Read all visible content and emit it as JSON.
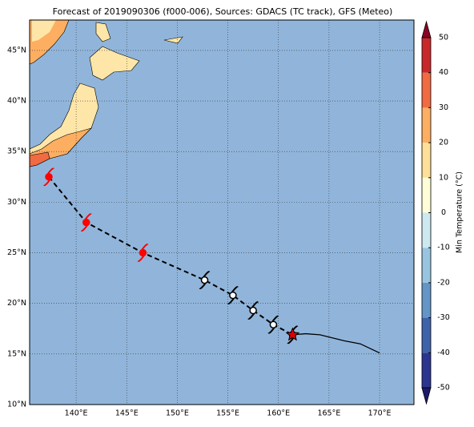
{
  "chart_data": {
    "type": "map",
    "title": "Forecast of 2019090306 (f000-006), Sources: GDACS (TC track), GFS (Meteo)",
    "xlim": [
      135.4,
      173.4
    ],
    "ylim": [
      10,
      48
    ],
    "xticks": [
      {
        "value": 140,
        "label": "140°E"
      },
      {
        "value": 145,
        "label": "145°E"
      },
      {
        "value": 150,
        "label": "150°E"
      },
      {
        "value": 155,
        "label": "155°E"
      },
      {
        "value": 160,
        "label": "160°E"
      },
      {
        "value": 165,
        "label": "165°E"
      },
      {
        "value": 170,
        "label": "170°E"
      }
    ],
    "yticks": [
      {
        "value": 10,
        "label": "10°N"
      },
      {
        "value": 15,
        "label": "15°N"
      },
      {
        "value": 20,
        "label": "20°N"
      },
      {
        "value": 25,
        "label": "25°N"
      },
      {
        "value": 30,
        "label": "30°N"
      },
      {
        "value": 35,
        "label": "35°N"
      },
      {
        "value": 40,
        "label": "40°N"
      },
      {
        "value": 45,
        "label": "45°N"
      }
    ],
    "grid": true,
    "past_track": {
      "lon": [
        137.3,
        141.0,
        146.6,
        152.7,
        155.5,
        157.5,
        159.5,
        161.4
      ],
      "lat": [
        32.5,
        28.0,
        25.0,
        22.3,
        20.8,
        19.3,
        17.9,
        16.9
      ],
      "colors": [
        "#ff0000",
        "#ff0000",
        "#ff0000",
        "#000000",
        "#000000",
        "#000000",
        "#000000",
        "#000000"
      ]
    },
    "forecast_track": {
      "lon": [
        161.4,
        162.7,
        164.1,
        166.5,
        168.1,
        170.0
      ],
      "lat": [
        16.9,
        17.0,
        16.9,
        16.3,
        16.0,
        15.1
      ]
    },
    "current_position": {
      "lon": 161.4,
      "lat": 16.9,
      "color": "#dd0000"
    },
    "colorbar": {
      "label": "Min Temperature (°C)",
      "clim": [
        -50,
        50
      ],
      "ticks": [
        -50,
        -40,
        -30,
        -20,
        -10,
        0,
        10,
        20,
        30,
        40,
        50
      ],
      "colors": [
        "#2b3590",
        "#3f63ab",
        "#6495c6",
        "#98c4df",
        "#cde8f1",
        "#fefdd8",
        "#fedf99",
        "#fcae62",
        "#f06a42",
        "#c9282a"
      ],
      "under": "#1b1a6e",
      "over": "#8c0026"
    }
  }
}
